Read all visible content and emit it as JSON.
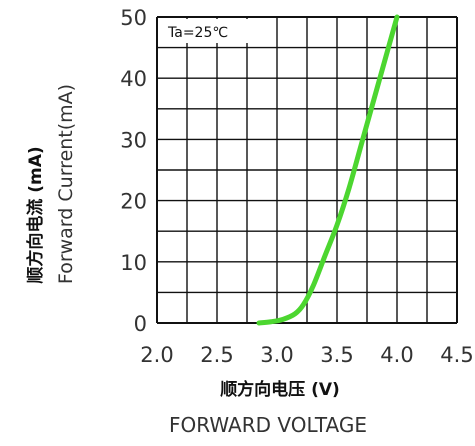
{
  "chart_data": {
    "type": "line",
    "annotation": "Ta=25℃",
    "ylabel_cn": "顺方向电流 (mA)",
    "ylabel_en": "Forward Current(mA)",
    "xlabel_cn": "顺方向电压 (V)",
    "xlabel_en": "FORWARD VOLTAGE",
    "xlim": [
      2.0,
      4.5
    ],
    "ylim": [
      0,
      50
    ],
    "x_ticks": [
      "2.0",
      "2.5",
      "3.0",
      "3.5",
      "4.0",
      "4.5"
    ],
    "y_ticks": [
      "0",
      "10",
      "20",
      "30",
      "40",
      "50"
    ],
    "grid": true,
    "line_color": "#4cd630",
    "series": [
      {
        "x": [
          2.85,
          2.95,
          3.05,
          3.15,
          3.22,
          3.3,
          3.4,
          3.5,
          3.6,
          3.7,
          3.8,
          3.9,
          4.0
        ],
        "y": [
          0,
          0.2,
          0.6,
          1.5,
          3.0,
          6.0,
          11.0,
          16.0,
          22.0,
          29.0,
          36.0,
          43.0,
          50.0
        ]
      }
    ]
  }
}
